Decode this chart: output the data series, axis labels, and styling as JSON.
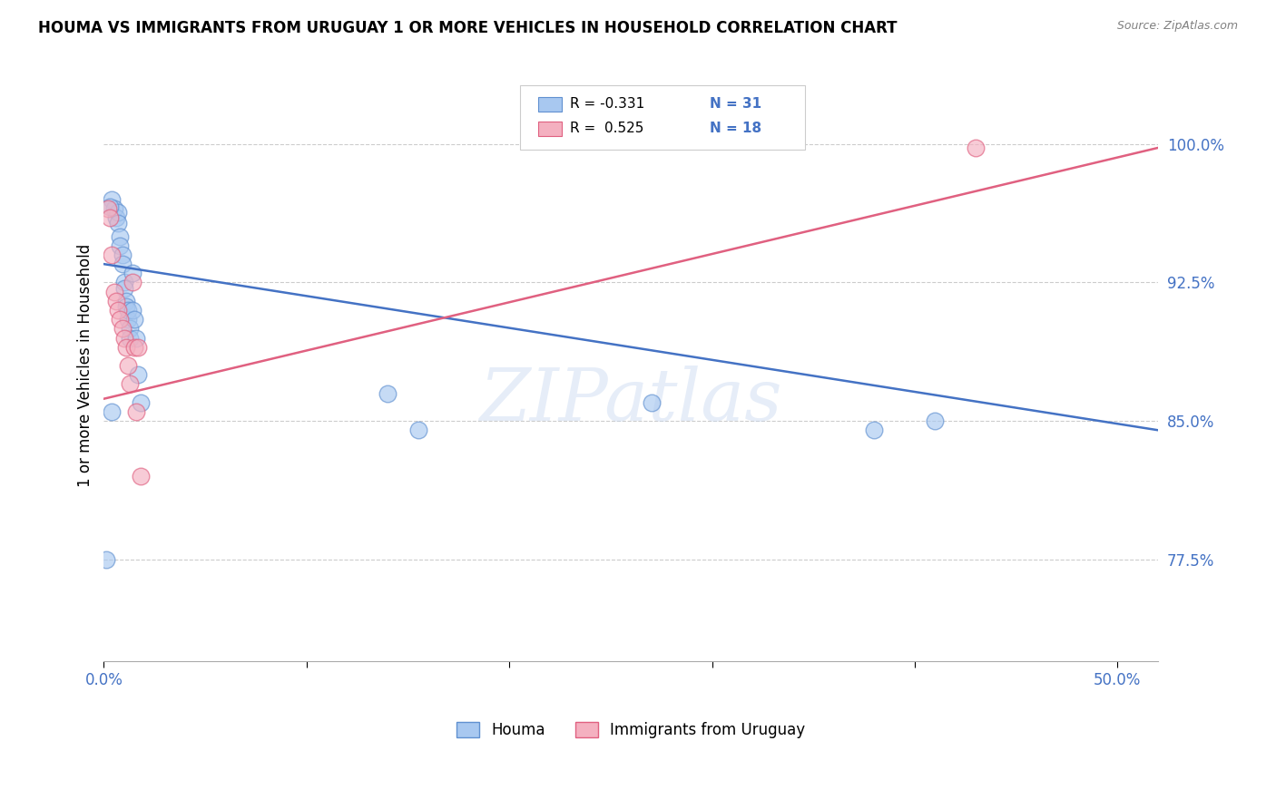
{
  "title": "HOUMA VS IMMIGRANTS FROM URUGUAY 1 OR MORE VEHICLES IN HOUSEHOLD CORRELATION CHART",
  "source": "Source: ZipAtlas.com",
  "ylabel": "1 or more Vehicles in Household",
  "xlim": [
    0.0,
    0.52
  ],
  "ylim": [
    0.72,
    1.04
  ],
  "xtick_values": [
    0.0,
    0.1,
    0.2,
    0.3,
    0.4,
    0.5
  ],
  "xtick_labels": [
    "0.0%",
    "",
    "",
    "",
    "",
    "50.0%"
  ],
  "ytick_values": [
    0.775,
    0.85,
    0.925,
    1.0
  ],
  "ytick_labels": [
    "77.5%",
    "85.0%",
    "92.5%",
    "100.0%"
  ],
  "blue_R": "-0.331",
  "blue_N": "31",
  "pink_R": "0.525",
  "pink_N": "18",
  "blue_color": "#A8C8F0",
  "pink_color": "#F4B0C0",
  "blue_edge_color": "#6090D0",
  "pink_edge_color": "#E06080",
  "blue_line_color": "#4472C4",
  "pink_line_color": "#E06080",
  "watermark": "ZIPatlas",
  "blue_points_x": [
    0.001,
    0.004,
    0.004,
    0.005,
    0.006,
    0.007,
    0.007,
    0.008,
    0.008,
    0.009,
    0.009,
    0.01,
    0.01,
    0.011,
    0.011,
    0.012,
    0.012,
    0.013,
    0.013,
    0.014,
    0.014,
    0.015,
    0.016,
    0.017,
    0.018,
    0.14,
    0.155,
    0.27,
    0.38,
    0.41,
    0.003
  ],
  "blue_points_y": [
    0.775,
    0.855,
    0.97,
    0.965,
    0.96,
    0.963,
    0.957,
    0.95,
    0.945,
    0.94,
    0.935,
    0.925,
    0.922,
    0.915,
    0.912,
    0.905,
    0.91,
    0.9,
    0.895,
    0.93,
    0.91,
    0.905,
    0.895,
    0.875,
    0.86,
    0.865,
    0.845,
    0.86,
    0.845,
    0.85,
    0.966
  ],
  "pink_points_x": [
    0.002,
    0.003,
    0.004,
    0.005,
    0.006,
    0.007,
    0.008,
    0.009,
    0.01,
    0.011,
    0.012,
    0.013,
    0.014,
    0.015,
    0.016,
    0.017,
    0.018,
    0.43
  ],
  "pink_points_y": [
    0.965,
    0.96,
    0.94,
    0.92,
    0.915,
    0.91,
    0.905,
    0.9,
    0.895,
    0.89,
    0.88,
    0.87,
    0.925,
    0.89,
    0.855,
    0.89,
    0.82,
    0.998
  ],
  "blue_line_x": [
    0.0,
    0.52
  ],
  "blue_line_y": [
    0.935,
    0.845
  ],
  "pink_line_x": [
    0.0,
    0.52
  ],
  "pink_line_y": [
    0.862,
    0.998
  ]
}
